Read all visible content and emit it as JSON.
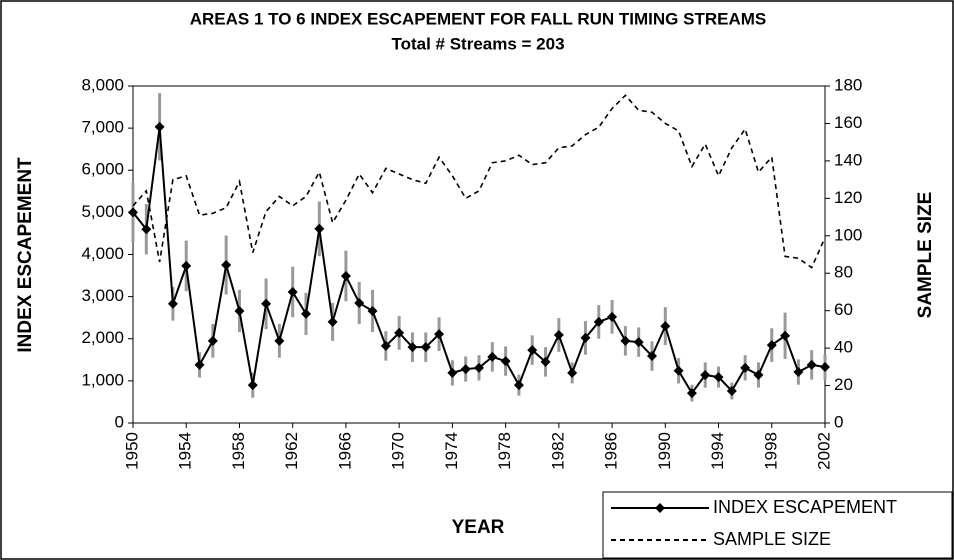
{
  "chart_data": {
    "type": "line",
    "title": "AREAS 1 TO 6 INDEX ESCAPEMENT FOR FALL RUN TIMING STREAMS",
    "subtitle": "Total # Streams = 203",
    "x_label": "YEAR",
    "y_label": "INDEX ESCAPEMENT",
    "y2_label": "SAMPLE SIZE",
    "x": [
      1950,
      1951,
      1952,
      1953,
      1954,
      1955,
      1956,
      1957,
      1958,
      1959,
      1960,
      1961,
      1962,
      1963,
      1964,
      1965,
      1966,
      1967,
      1968,
      1969,
      1970,
      1971,
      1972,
      1973,
      1974,
      1975,
      1976,
      1977,
      1978,
      1979,
      1980,
      1981,
      1982,
      1983,
      1984,
      1985,
      1986,
      1987,
      1988,
      1989,
      1990,
      1991,
      1992,
      1993,
      1994,
      1995,
      1996,
      1997,
      1998,
      1999,
      2000,
      2001,
      2002
    ],
    "series": [
      {
        "name": "INDEX ESCAPEMENT",
        "color": "#000000",
        "error_color": "#999999",
        "marker": "diamond",
        "line_style": "solid",
        "values": [
          5000,
          4600,
          7030,
          2830,
          3730,
          1380,
          1950,
          3750,
          2660,
          900,
          2830,
          1950,
          3110,
          2590,
          4610,
          2400,
          3490,
          2850,
          2660,
          1830,
          2140,
          1800,
          1800,
          2110,
          1190,
          1280,
          1310,
          1570,
          1470,
          900,
          1730,
          1450,
          2090,
          1190,
          2020,
          2400,
          2520,
          1950,
          1920,
          1590,
          2300,
          1240,
          710,
          1140,
          1090,
          760,
          1310,
          1140,
          1850,
          2070,
          1210,
          1380,
          1330
        ],
        "errors": [
          700,
          600,
          800,
          400,
          600,
          300,
          400,
          700,
          500,
          300,
          600,
          400,
          600,
          500,
          650,
          450,
          600,
          500,
          500,
          350,
          400,
          350,
          350,
          400,
          300,
          300,
          300,
          350,
          350,
          250,
          350,
          350,
          400,
          250,
          400,
          400,
          400,
          350,
          350,
          350,
          450,
          300,
          200,
          300,
          250,
          200,
          300,
          300,
          400,
          550,
          300,
          350,
          300
        ]
      },
      {
        "name": "SAMPLE SIZE",
        "color": "#000000",
        "axis": "y2",
        "line_style": "dashed",
        "values": [
          116,
          124,
          86,
          130,
          132,
          111,
          112,
          115,
          129,
          91,
          113,
          121,
          116,
          121,
          134,
          107,
          119,
          133,
          123,
          136,
          133,
          130,
          128,
          142,
          132,
          120,
          124,
          139,
          140,
          143,
          138,
          139,
          147,
          148,
          154,
          158,
          168,
          175,
          167,
          166,
          160,
          156,
          137,
          149,
          132,
          147,
          157,
          134,
          142,
          89,
          88,
          83,
          99
        ]
      }
    ],
    "xlim": [
      1950,
      2002
    ],
    "xticks": [
      1950,
      1954,
      1958,
      1962,
      1966,
      1970,
      1974,
      1978,
      1982,
      1986,
      1990,
      1994,
      1998,
      2002
    ],
    "ylim": [
      0,
      8000
    ],
    "yticks": [
      0,
      {
        "value": 1000,
        "label": "1,000"
      },
      {
        "value": 2000,
        "label": "2,000"
      },
      {
        "value": 3000,
        "label": "3,000"
      },
      {
        "value": 4000,
        "label": "4,000"
      },
      {
        "value": 5000,
        "label": "5,000"
      },
      {
        "value": 6000,
        "label": "6,000"
      },
      {
        "value": 7000,
        "label": "7,000"
      },
      {
        "value": 8000,
        "label": "8,000"
      }
    ],
    "y2lim": [
      0,
      180
    ],
    "y2ticks": [
      0,
      20,
      40,
      60,
      80,
      100,
      120,
      140,
      160,
      180
    ],
    "grid": false,
    "legend": "bottom-right"
  }
}
